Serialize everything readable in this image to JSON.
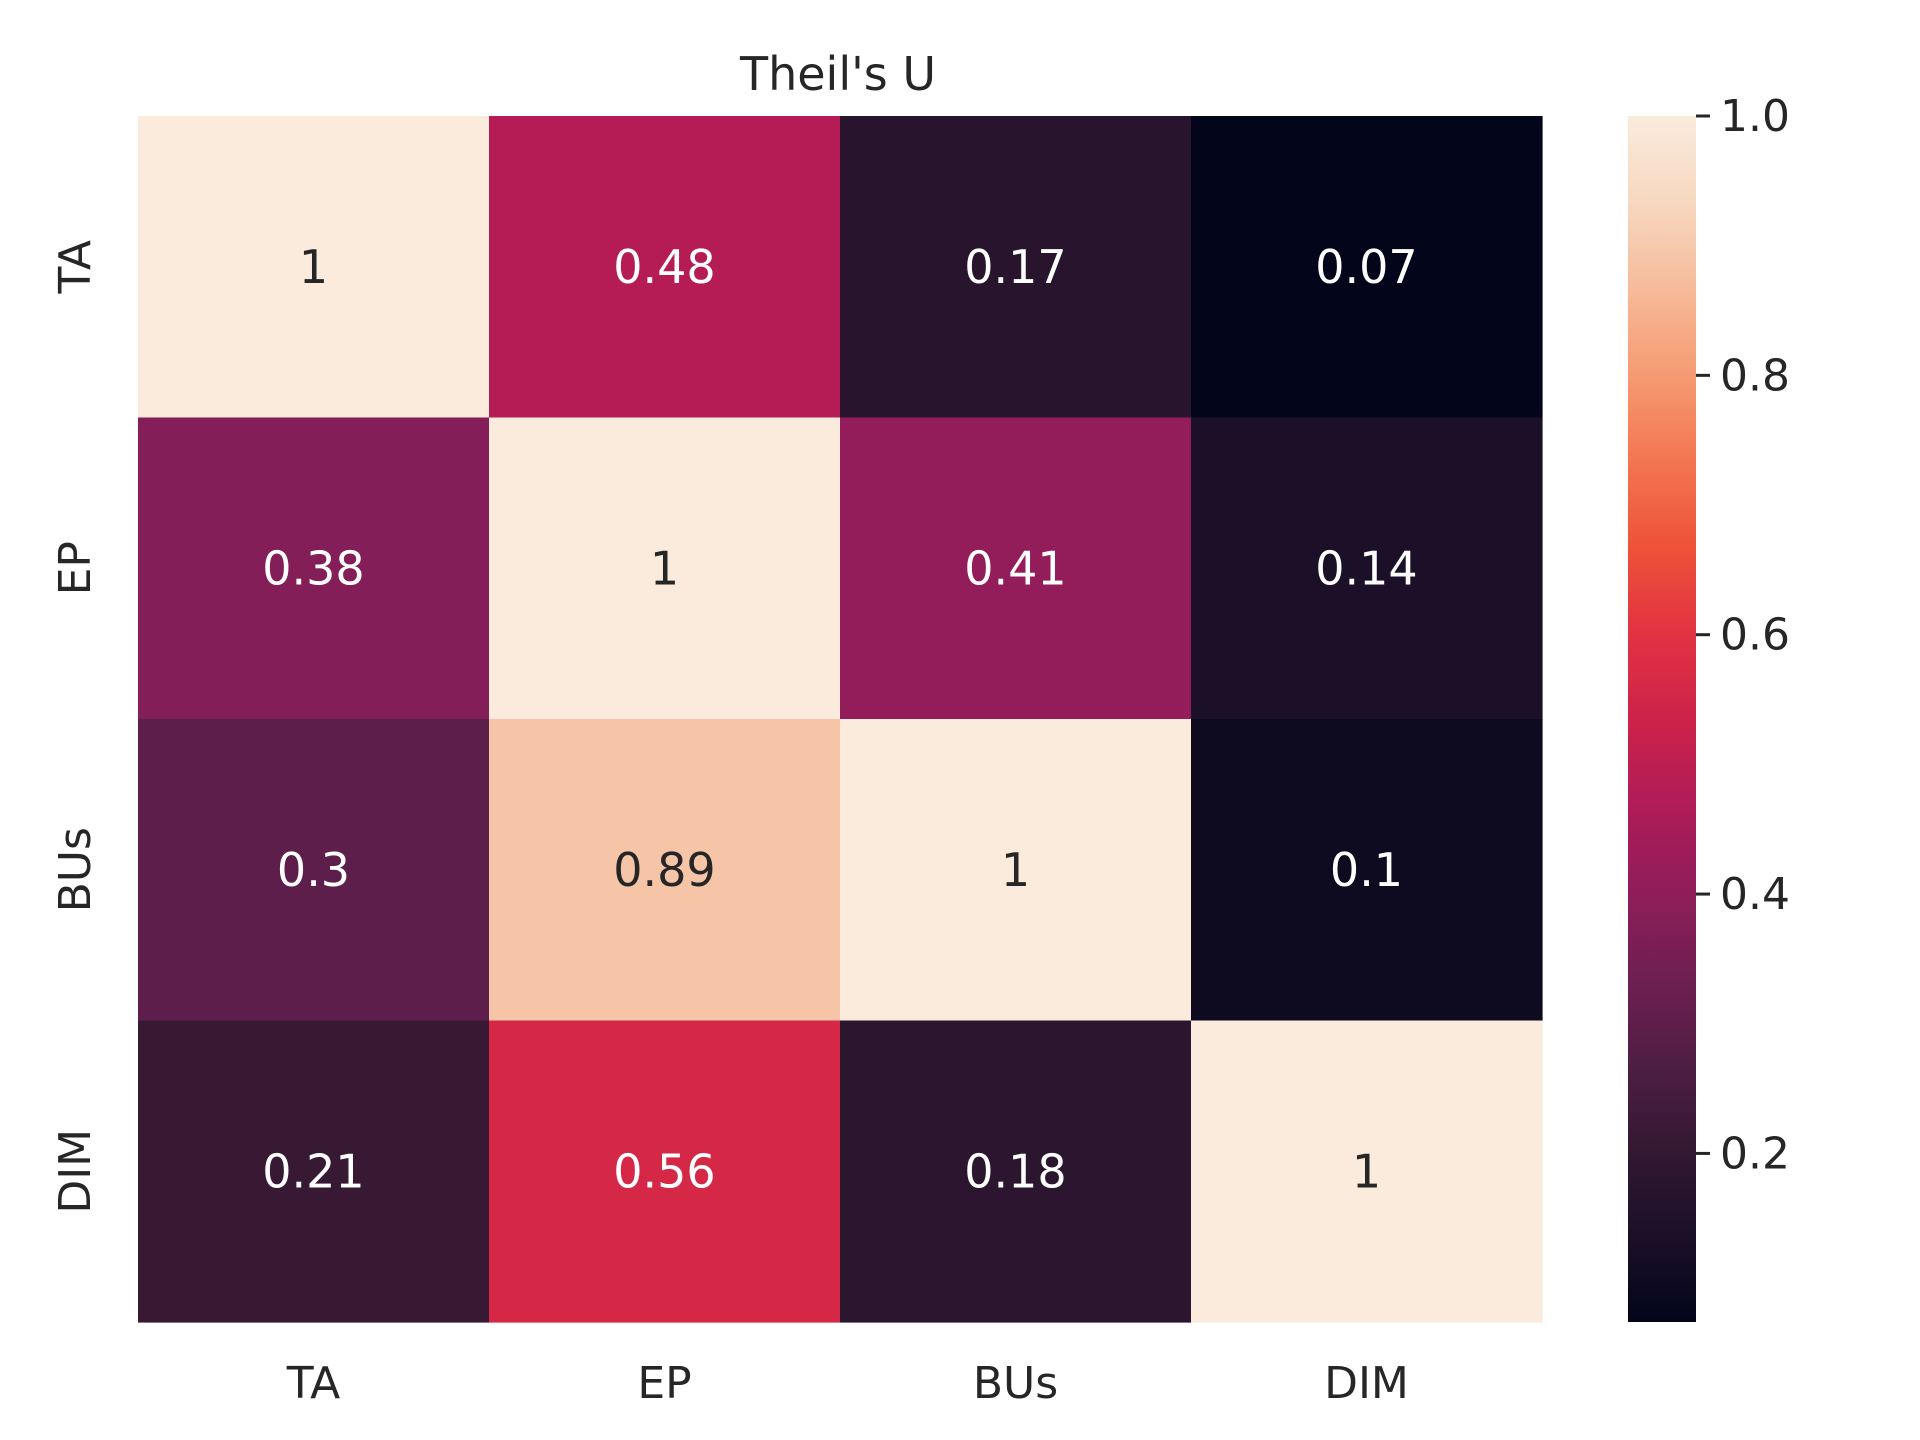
{
  "chart_data": {
    "type": "heatmap",
    "title": "Theil's U",
    "xlabel": "",
    "ylabel": "",
    "x_categories": [
      "TA",
      "EP",
      "BUs",
      "DIM"
    ],
    "y_categories": [
      "TA",
      "EP",
      "BUs",
      "DIM"
    ],
    "values": [
      [
        1,
        0.48,
        0.17,
        0.07
      ],
      [
        0.38,
        1,
        0.41,
        0.14
      ],
      [
        0.3,
        0.89,
        1,
        0.1
      ],
      [
        0.21,
        0.56,
        0.18,
        1
      ]
    ],
    "value_labels": [
      [
        "1",
        "0.48",
        "0.17",
        "0.07"
      ],
      [
        "0.38",
        "1",
        "0.41",
        "0.14"
      ],
      [
        "0.3",
        "0.89",
        "1",
        "0.1"
      ],
      [
        "0.21",
        "0.56",
        "0.18",
        "1"
      ]
    ],
    "colorbar": {
      "min": 0.07,
      "max": 1.0,
      "ticks": [
        0.2,
        0.4,
        0.6,
        0.8,
        1.0
      ],
      "tick_labels": [
        "0.2",
        "0.4",
        "0.6",
        "0.8",
        "1.0"
      ],
      "colormap": "rocket",
      "colormap_stops": [
        "#03051a",
        "#1b1028",
        "#341832",
        "#4f1e44",
        "#6f1f53",
        "#8f1d5a",
        "#b01b58",
        "#cd2249",
        "#e13342",
        "#ee5238",
        "#f37651",
        "#f59b73",
        "#f6bb9a",
        "#f7d8c0",
        "#faebdd"
      ]
    },
    "grid": false,
    "legend": "colorbar-right"
  }
}
